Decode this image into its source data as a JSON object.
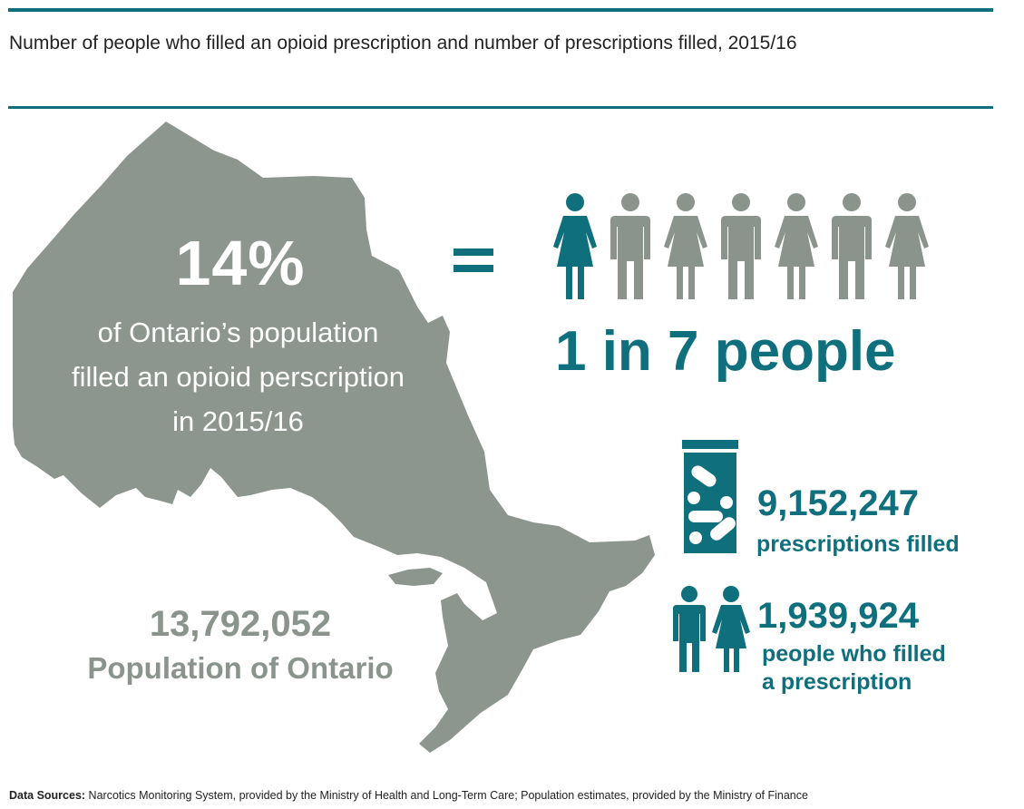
{
  "header": {
    "title": "Number of people who filled an opioid prescription and number of prescriptions filled, 2015/16"
  },
  "headline": {
    "percent": "14%",
    "description_lines": [
      "of Ontario’s population",
      "filled an opioid perscription",
      "in 2015/16"
    ],
    "equals_sign": "=",
    "ratio_text": "1 in 7 people",
    "people_icons": [
      "woman-icon",
      "man-icon",
      "woman-icon",
      "man-icon",
      "woman-icon",
      "man-icon",
      "woman-icon"
    ],
    "highlighted_icon_count": 1
  },
  "population": {
    "value": "13,792,052",
    "label": "Population of Ontario"
  },
  "prescriptions": {
    "value": "9,152,247",
    "label": "prescriptions filled",
    "icon": "pill-bottle-icon"
  },
  "people_filled": {
    "value": "1,939,924",
    "label_lines": [
      "people who filled",
      "a prescription"
    ],
    "icon": "man-woman-icon"
  },
  "footer": {
    "sources_label": "Data Sources:",
    "sources_text": "Narcotics Monitoring System, provided by the Ministry of Health and Long-Term Care; Population estimates, provided by the Ministry of Finance"
  },
  "colors": {
    "accent": "#0f6f7c",
    "map_gray": "#8c968e",
    "icon_gray": "#8a948c",
    "text_gray": "#8a948c"
  }
}
